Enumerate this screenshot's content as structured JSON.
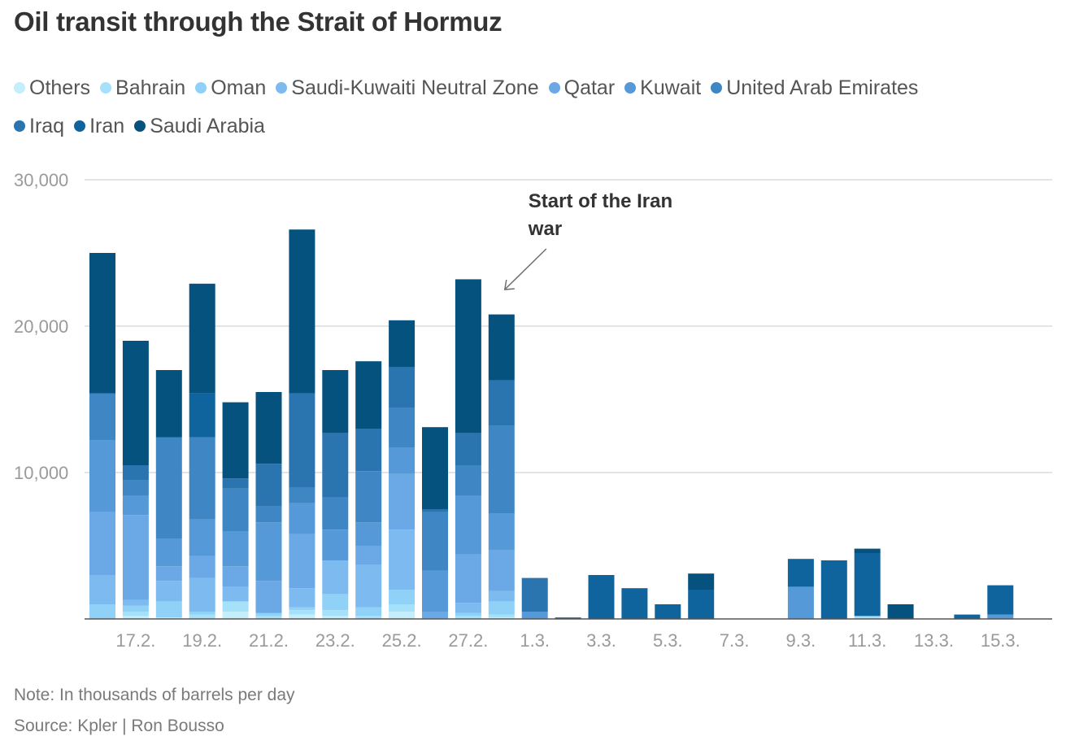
{
  "title": "Oil transit through the Strait of Hormuz",
  "note": "Note: In thousands of barrels per day",
  "source": "Source: Kpler | Ron Bousso",
  "chart_data": {
    "type": "bar",
    "stacked": true,
    "ylim": [
      0,
      30000
    ],
    "yticks": [
      10000,
      20000,
      30000
    ],
    "ytick_labels": [
      "10,000",
      "20,000",
      "30,000"
    ],
    "x_tick_labels": [
      "17.2.",
      "19.2.",
      "21.2.",
      "23.2.",
      "25.2.",
      "27.2.",
      "1.3.",
      "3.3.",
      "5.3.",
      "7.3.",
      "9.3.",
      "11.3.",
      "13.3.",
      "15.3."
    ],
    "categories": [
      "16.2.",
      "17.2.",
      "18.2.",
      "19.2.",
      "20.2.",
      "21.2.",
      "22.2.",
      "23.2.",
      "24.2.",
      "25.2.",
      "26.2.",
      "27.2.",
      "28.2.",
      "1.3.",
      "2.3.",
      "3.3.",
      "4.3.",
      "5.3.",
      "6.3.",
      "7.3.",
      "8.3.",
      "9.3.",
      "10.3.",
      "11.3.",
      "12.3.",
      "13.3.",
      "14.3.",
      "15.3."
    ],
    "grid": true,
    "legend_position": "top",
    "annotation": {
      "text": [
        "Start of the Iran",
        "war"
      ],
      "category": "28.2."
    },
    "series": [
      {
        "name": "Others",
        "color": "#c4eefc",
        "values": [
          0,
          200,
          100,
          0,
          500,
          0,
          300,
          200,
          0,
          500,
          0,
          0,
          100,
          0,
          0,
          0,
          0,
          0,
          0,
          0,
          0,
          0,
          0,
          0,
          0,
          0,
          0,
          0
        ]
      },
      {
        "name": "Bahrain",
        "color": "#a6e1fa",
        "values": [
          0,
          300,
          0,
          300,
          700,
          200,
          300,
          400,
          200,
          500,
          0,
          200,
          200,
          0,
          0,
          0,
          0,
          0,
          0,
          0,
          0,
          0,
          0,
          200,
          0,
          0,
          0,
          0
        ]
      },
      {
        "name": "Oman",
        "color": "#8fd1f7",
        "values": [
          1000,
          400,
          1100,
          200,
          0,
          200,
          200,
          1100,
          600,
          1000,
          0,
          200,
          900,
          0,
          0,
          0,
          0,
          0,
          0,
          0,
          0,
          0,
          0,
          0,
          0,
          0,
          0,
          0
        ]
      },
      {
        "name": "Saudi-Kuwaiti Neutral Zone",
        "color": "#7cbaf0",
        "values": [
          2000,
          400,
          1400,
          2300,
          1000,
          0,
          1300,
          2300,
          2900,
          4100,
          0,
          700,
          700,
          0,
          0,
          0,
          0,
          0,
          0,
          0,
          0,
          0,
          0,
          0,
          0,
          0,
          0,
          0
        ]
      },
      {
        "name": "Qatar",
        "color": "#6aa9e6",
        "values": [
          4300,
          5800,
          1000,
          1500,
          1400,
          2200,
          3700,
          0,
          1300,
          3800,
          500,
          3300,
          2800,
          0,
          0,
          0,
          0,
          0,
          0,
          0,
          0,
          0,
          0,
          0,
          0,
          0,
          0,
          0
        ]
      },
      {
        "name": "Kuwait",
        "color": "#5599d8",
        "values": [
          4900,
          1300,
          1900,
          2500,
          2400,
          4000,
          2100,
          2100,
          1600,
          1800,
          2800,
          4000,
          2500,
          500,
          0,
          0,
          0,
          0,
          0,
          0,
          0,
          2200,
          0,
          0,
          0,
          0,
          0,
          300
        ]
      },
      {
        "name": "United Arab Emirates",
        "color": "#3e87c4",
        "values": [
          3200,
          1100,
          6900,
          5600,
          2900,
          1100,
          1100,
          2200,
          3500,
          2700,
          4000,
          2100,
          6000,
          0,
          0,
          0,
          0,
          0,
          0,
          0,
          0,
          0,
          0,
          0,
          0,
          0,
          0,
          0
        ]
      },
      {
        "name": "Iraq",
        "color": "#2a74b0",
        "values": [
          0,
          1000,
          0,
          0,
          700,
          2900,
          6400,
          4400,
          2900,
          2800,
          200,
          2200,
          3100,
          2300,
          0,
          0,
          0,
          0,
          0,
          0,
          0,
          0,
          0,
          0,
          0,
          0,
          0,
          0
        ]
      },
      {
        "name": "Iran",
        "color": "#10649d",
        "values": [
          0,
          0,
          0,
          3000,
          0,
          0,
          0,
          0,
          0,
          0,
          0,
          0,
          0,
          0,
          100,
          3000,
          2100,
          1000,
          2000,
          0,
          0,
          1900,
          4000,
          4300,
          0,
          0,
          300,
          2000
        ]
      },
      {
        "name": "Saudi Arabia",
        "color": "#06527e",
        "values": [
          9600,
          8500,
          4600,
          7500,
          5200,
          4900,
          11200,
          4300,
          4600,
          3200,
          5600,
          10500,
          4500,
          0,
          0,
          0,
          0,
          0,
          1100,
          0,
          0,
          0,
          0,
          300,
          1000,
          0,
          0,
          0
        ]
      }
    ]
  }
}
